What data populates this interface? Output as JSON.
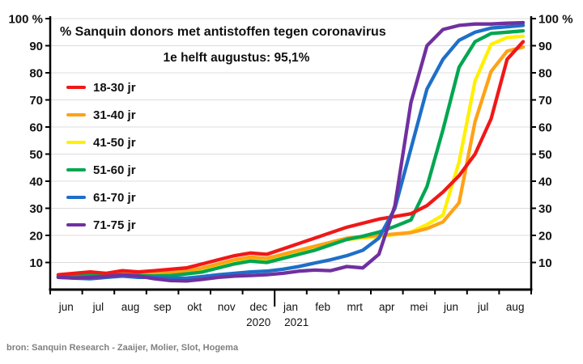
{
  "title": "% Sanquin donors met antistoffen tegen coronavirus",
  "subtitle": "1e helft augustus: 95,1%",
  "source": "bron: Sanquin Research - Zaaijer, Molier, Slot, Hogema",
  "y_axis": {
    "unit": "%",
    "top_label": "100 %",
    "ticks": [
      10,
      20,
      30,
      40,
      50,
      60,
      70,
      80,
      90,
      100
    ]
  },
  "x_axis": {
    "months": [
      "jun",
      "jul",
      "aug",
      "sep",
      "okt",
      "nov",
      "dec",
      "jan",
      "feb",
      "mrt",
      "apr",
      "mei",
      "jun",
      "jul",
      "aug"
    ],
    "years": [
      "2020",
      "2021"
    ]
  },
  "chart_data": {
    "type": "line",
    "title": "% Sanquin donors met antistoffen tegen coronavirus",
    "subtitle": "1e helft augustus: 95,1%",
    "x_unit": "half-month intervals, jun 2020 - aug 2021",
    "x_months": [
      "jun",
      "jul",
      "aug",
      "sep",
      "okt",
      "nov",
      "dec",
      "jan",
      "feb",
      "mrt",
      "apr",
      "mei",
      "jun",
      "jul",
      "aug"
    ],
    "year_break_after_month_index": 7,
    "ylim": [
      0,
      100
    ],
    "grid": true,
    "legend_position": "upper-left-inside",
    "y_ticks": [
      10,
      20,
      30,
      40,
      50,
      60,
      70,
      80,
      90,
      100
    ],
    "series": [
      {
        "name": "18-30 jr",
        "color": "#F01818",
        "values": [
          5.5,
          6,
          6.5,
          6,
          7,
          6.5,
          7,
          7.5,
          8,
          9.5,
          11,
          12.5,
          13.5,
          13,
          15,
          17,
          19,
          21,
          23,
          24.5,
          26,
          27,
          28,
          31,
          36,
          42,
          50,
          63,
          85,
          91.5
        ]
      },
      {
        "name": "31-40 jr",
        "color": "#FFA216",
        "values": [
          5,
          5.5,
          6,
          5.5,
          6.5,
          6,
          6,
          6.5,
          7,
          8,
          9.5,
          11,
          12,
          11.5,
          13,
          14.5,
          16,
          17.5,
          19,
          19.5,
          20,
          20.5,
          21,
          22.5,
          25,
          32,
          62,
          80.5,
          88,
          89.5
        ]
      },
      {
        "name": "41-50 jr",
        "color": "#FFF000",
        "values": [
          5,
          5.3,
          5.8,
          5.5,
          6.2,
          6,
          6,
          6.2,
          6.8,
          7.5,
          9,
          10.5,
          11.5,
          11,
          12.5,
          14,
          15.5,
          17,
          18.5,
          19,
          19.7,
          20.3,
          21.2,
          24,
          27.5,
          47,
          77,
          90.5,
          93,
          93.5
        ]
      },
      {
        "name": "51-60 jr",
        "color": "#00A651",
        "values": [
          4.8,
          5,
          5.2,
          5,
          5.5,
          5.2,
          5,
          5.2,
          5.8,
          6.5,
          8,
          9.5,
          10.5,
          10,
          11.5,
          13,
          14.5,
          16.5,
          18.5,
          19.7,
          21.2,
          23.3,
          25.7,
          38,
          59,
          82,
          91.5,
          94.5,
          95,
          95.5
        ]
      },
      {
        "name": "61-70 jr",
        "color": "#1E6FC8",
        "values": [
          4.5,
          4.2,
          4,
          4.5,
          5,
          4.5,
          4.5,
          4.2,
          4.2,
          4.8,
          5.5,
          6,
          6.5,
          6.8,
          7.5,
          8.5,
          9.8,
          11,
          12.5,
          14.5,
          19,
          30,
          52,
          74,
          85,
          92,
          95,
          96.5,
          97,
          97.5
        ]
      },
      {
        "name": "71-75 jr",
        "color": "#7030A0",
        "values": [
          4.5,
          4.3,
          4.5,
          4.8,
          5.5,
          5,
          4,
          3.3,
          3.2,
          3.8,
          4.5,
          5,
          5.2,
          5.5,
          6,
          6.8,
          7.2,
          7,
          8.5,
          8,
          13,
          31,
          69,
          90,
          96,
          97.5,
          98,
          98,
          98.3,
          98.5
        ]
      }
    ]
  }
}
